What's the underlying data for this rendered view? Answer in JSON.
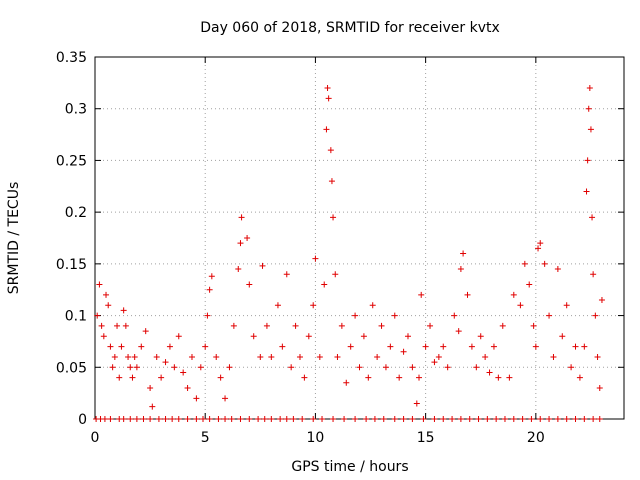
{
  "chart_data": {
    "type": "scatter",
    "title": "Day 060 of 2018, SRMTID for receiver kvtx",
    "xlabel": "GPS time / hours",
    "ylabel": "SRMTID / TECUs",
    "xlim": [
      0,
      24
    ],
    "ylim": [
      0,
      0.35
    ],
    "xticks": [
      0,
      5,
      10,
      15,
      20
    ],
    "xtick_labels": [
      "0",
      "5",
      "10",
      "15",
      "20"
    ],
    "yticks": [
      0,
      0.05,
      0.1,
      0.15,
      0.2,
      0.25,
      0.3,
      0.35
    ],
    "ytick_labels": [
      "0",
      "0.05",
      "0.1",
      "0.15",
      "0.2",
      "0.25",
      "0.3",
      "0.35"
    ],
    "grid": true,
    "series": [
      {
        "name": "SRMTID",
        "marker": "+",
        "color": "#e00000",
        "points": [
          [
            0.1,
            0.1
          ],
          [
            0.2,
            0.13
          ],
          [
            0.3,
            0.09
          ],
          [
            0.4,
            0.08
          ],
          [
            0.5,
            0.12
          ],
          [
            0.6,
            0.11
          ],
          [
            0.7,
            0.07
          ],
          [
            0.8,
            0.05
          ],
          [
            0.9,
            0.06
          ],
          [
            1.0,
            0.09
          ],
          [
            1.1,
            0.04
          ],
          [
            1.2,
            0.07
          ],
          [
            1.3,
            0.105
          ],
          [
            1.4,
            0.09
          ],
          [
            1.5,
            0.06
          ],
          [
            1.6,
            0.05
          ],
          [
            1.7,
            0.04
          ],
          [
            1.8,
            0.06
          ],
          [
            1.9,
            0.05
          ],
          [
            2.1,
            0.07
          ],
          [
            2.3,
            0.085
          ],
          [
            2.5,
            0.03
          ],
          [
            2.6,
            0.012
          ],
          [
            2.8,
            0.06
          ],
          [
            3.0,
            0.04
          ],
          [
            3.2,
            0.055
          ],
          [
            3.4,
            0.07
          ],
          [
            3.6,
            0.05
          ],
          [
            3.8,
            0.08
          ],
          [
            4.0,
            0.045
          ],
          [
            4.2,
            0.03
          ],
          [
            4.4,
            0.06
          ],
          [
            4.6,
            0.02
          ],
          [
            4.8,
            0.05
          ],
          [
            5.0,
            0.07
          ],
          [
            5.1,
            0.1
          ],
          [
            5.2,
            0.125
          ],
          [
            5.3,
            0.138
          ],
          [
            5.5,
            0.06
          ],
          [
            5.7,
            0.04
          ],
          [
            5.9,
            0.02
          ],
          [
            6.1,
            0.05
          ],
          [
            6.3,
            0.09
          ],
          [
            6.5,
            0.145
          ],
          [
            6.6,
            0.17
          ],
          [
            6.65,
            0.195
          ],
          [
            6.9,
            0.175
          ],
          [
            7.0,
            0.13
          ],
          [
            7.2,
            0.08
          ],
          [
            7.5,
            0.06
          ],
          [
            7.6,
            0.148
          ],
          [
            7.8,
            0.09
          ],
          [
            8.0,
            0.06
          ],
          [
            8.3,
            0.11
          ],
          [
            8.5,
            0.07
          ],
          [
            8.7,
            0.14
          ],
          [
            8.9,
            0.05
          ],
          [
            9.1,
            0.09
          ],
          [
            9.3,
            0.06
          ],
          [
            9.5,
            0.04
          ],
          [
            9.7,
            0.08
          ],
          [
            9.9,
            0.11
          ],
          [
            10.0,
            0.155
          ],
          [
            10.2,
            0.06
          ],
          [
            10.4,
            0.13
          ],
          [
            10.5,
            0.28
          ],
          [
            10.55,
            0.32
          ],
          [
            10.6,
            0.31
          ],
          [
            10.7,
            0.26
          ],
          [
            10.75,
            0.23
          ],
          [
            10.8,
            0.195
          ],
          [
            10.9,
            0.14
          ],
          [
            11.0,
            0.06
          ],
          [
            11.2,
            0.09
          ],
          [
            11.4,
            0.035
          ],
          [
            11.6,
            0.07
          ],
          [
            11.8,
            0.1
          ],
          [
            12.0,
            0.05
          ],
          [
            12.2,
            0.08
          ],
          [
            12.4,
            0.04
          ],
          [
            12.6,
            0.11
          ],
          [
            12.8,
            0.06
          ],
          [
            13.0,
            0.09
          ],
          [
            13.2,
            0.05
          ],
          [
            13.4,
            0.07
          ],
          [
            13.6,
            0.1
          ],
          [
            13.8,
            0.04
          ],
          [
            14.0,
            0.065
          ],
          [
            14.2,
            0.08
          ],
          [
            14.4,
            0.05
          ],
          [
            14.6,
            0.015
          ],
          [
            14.7,
            0.04
          ],
          [
            14.8,
            0.12
          ],
          [
            15.0,
            0.07
          ],
          [
            15.2,
            0.09
          ],
          [
            15.4,
            0.055
          ],
          [
            15.6,
            0.06
          ],
          [
            15.8,
            0.07
          ],
          [
            16.0,
            0.05
          ],
          [
            16.3,
            0.1
          ],
          [
            16.5,
            0.085
          ],
          [
            16.6,
            0.145
          ],
          [
            16.7,
            0.16
          ],
          [
            16.9,
            0.12
          ],
          [
            17.1,
            0.07
          ],
          [
            17.3,
            0.05
          ],
          [
            17.5,
            0.08
          ],
          [
            17.7,
            0.06
          ],
          [
            17.9,
            0.045
          ],
          [
            18.1,
            0.07
          ],
          [
            18.3,
            0.04
          ],
          [
            18.5,
            0.09
          ],
          [
            18.8,
            0.04
          ],
          [
            19.0,
            0.12
          ],
          [
            19.3,
            0.11
          ],
          [
            19.5,
            0.15
          ],
          [
            19.7,
            0.13
          ],
          [
            19.9,
            0.09
          ],
          [
            20.0,
            0.07
          ],
          [
            20.1,
            0.165
          ],
          [
            20.2,
            0.17
          ],
          [
            20.4,
            0.15
          ],
          [
            20.6,
            0.1
          ],
          [
            20.8,
            0.06
          ],
          [
            21.0,
            0.145
          ],
          [
            21.2,
            0.08
          ],
          [
            21.4,
            0.11
          ],
          [
            21.6,
            0.05
          ],
          [
            21.8,
            0.07
          ],
          [
            22.0,
            0.04
          ],
          [
            22.2,
            0.07
          ],
          [
            22.3,
            0.22
          ],
          [
            22.35,
            0.25
          ],
          [
            22.4,
            0.3
          ],
          [
            22.45,
            0.32
          ],
          [
            22.5,
            0.28
          ],
          [
            22.55,
            0.195
          ],
          [
            22.6,
            0.14
          ],
          [
            22.7,
            0.1
          ],
          [
            22.8,
            0.06
          ],
          [
            22.9,
            0.03
          ],
          [
            23.0,
            0.115
          ]
        ]
      }
    ],
    "zero_points_x": [
      0.05,
      0.25,
      0.45,
      0.7,
      1.1,
      1.3,
      1.6,
      1.9,
      2.2,
      2.5,
      2.9,
      3.2,
      3.5,
      3.8,
      4.2,
      4.6,
      4.9,
      5.2,
      5.6,
      5.9,
      6.2,
      6.6,
      7.0,
      7.4,
      7.7,
      8.0,
      8.4,
      8.7,
      9.0,
      9.4,
      9.9,
      10.3,
      10.8,
      11.3,
      11.8,
      12.3,
      12.7,
      13.1,
      13.6,
      14.0,
      14.4,
      14.9,
      15.4,
      15.8,
      16.2,
      16.6,
      17.0,
      17.4,
      17.8,
      18.2,
      18.6,
      19.0,
      19.4,
      19.8,
      20.2,
      20.6,
      21.0,
      21.4,
      21.8,
      22.2,
      22.6,
      22.9
    ]
  }
}
